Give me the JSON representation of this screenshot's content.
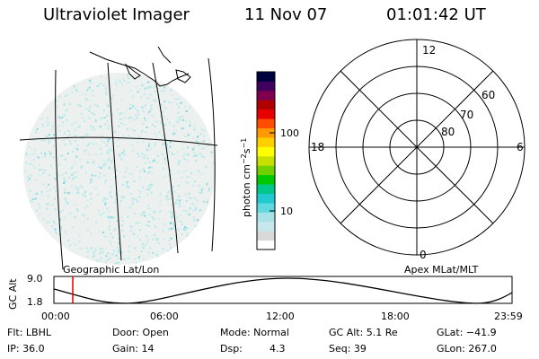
{
  "header": {
    "instrument": "Ultraviolet Imager",
    "date": "11 Nov 07",
    "time": "01:01:42 UT"
  },
  "colorbar": {
    "unit": "photon cm",
    "unit_exp1": "−2",
    "unit_s": "s",
    "unit_exp2": "−1",
    "ticks": [
      "100",
      "10"
    ],
    "colors": [
      "#ffffff",
      "#d9d9d9",
      "#c6e8ec",
      "#a8e2e8",
      "#5fd8e0",
      "#22c9d0",
      "#00c88a",
      "#00c800",
      "#70d000",
      "#c8e000",
      "#ffff00",
      "#ffd000",
      "#ff9a00",
      "#ff4d00",
      "#e60000",
      "#b00000",
      "#800050",
      "#400060",
      "#000040"
    ]
  },
  "left_map": {
    "label": "Geographic Lat/Lon",
    "speckle_color": "#9ee6ea"
  },
  "polar_plot": {
    "label": "Apex MLat/MLT",
    "mlt_labels": [
      "12",
      "18",
      "6",
      "0"
    ],
    "lat_labels": [
      "60",
      "70",
      "80"
    ]
  },
  "altitude_plot": {
    "ylabel": "GC Alt",
    "y_ticks": [
      "9.0",
      "1.8"
    ],
    "x_ticks": [
      "00:00",
      "06:00",
      "12:00",
      "18:00",
      "23:59"
    ],
    "marker_color": "#e00000"
  },
  "status": {
    "flt": "Flt: LBHL",
    "door": "Door: Open",
    "mode": "Mode: Normal",
    "gc_alt": "GC Alt: 5.1 Re",
    "glat": "GLat: −41.9",
    "ip": "IP: 36.0",
    "gain": "Gain: 14",
    "dsp_label": "Dsp:",
    "dsp_value": "4.3",
    "seq": "Seq: 39",
    "glon": "GLon: 267.0"
  }
}
